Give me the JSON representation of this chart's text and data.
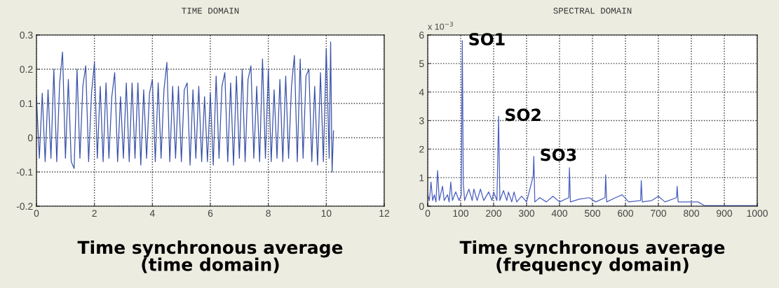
{
  "chart_data": [
    {
      "type": "line",
      "title": "TIME DOMAIN",
      "annotations": [
        "Time synchronous average\n(time domain)"
      ],
      "series": [
        {
          "color": "#3a53a8",
          "x": [
            0.0,
            0.1,
            0.2,
            0.3,
            0.4,
            0.5,
            0.6,
            0.7,
            0.8,
            0.9,
            1.0,
            1.1,
            1.2,
            1.3,
            1.4,
            1.5,
            1.6,
            1.7,
            1.8,
            1.9,
            2.0,
            2.1,
            2.2,
            2.3,
            2.4,
            2.5,
            2.6,
            2.7,
            2.8,
            2.9,
            3.0,
            3.1,
            3.2,
            3.3,
            3.4,
            3.5,
            3.6,
            3.7,
            3.8,
            3.9,
            4.0,
            4.1,
            4.2,
            4.3,
            4.4,
            4.5,
            4.6,
            4.7,
            4.8,
            4.9,
            5.0,
            5.1,
            5.2,
            5.3,
            5.4,
            5.5,
            5.6,
            5.7,
            5.8,
            5.9,
            6.0,
            6.1,
            6.2,
            6.3,
            6.4,
            6.5,
            6.6,
            6.7,
            6.8,
            6.9,
            7.0,
            7.1,
            7.2,
            7.3,
            7.4,
            7.5,
            7.6,
            7.7,
            7.8,
            7.9,
            8.0,
            8.1,
            8.2,
            8.3,
            8.4,
            8.5,
            8.6,
            8.7,
            8.8,
            8.9,
            9.0,
            9.1,
            9.2,
            9.3,
            9.4,
            9.5,
            9.6,
            9.7,
            9.8,
            9.9,
            10.0,
            10.1,
            10.15,
            10.2,
            10.25
          ],
          "values": [
            0.12,
            -0.06,
            0.13,
            -0.07,
            0.14,
            -0.06,
            0.2,
            -0.07,
            0.16,
            0.25,
            -0.06,
            0.17,
            -0.07,
            -0.09,
            0.2,
            -0.06,
            0.15,
            0.21,
            -0.07,
            0.13,
            0.22,
            -0.06,
            0.15,
            -0.07,
            0.16,
            -0.06,
            0.12,
            0.19,
            -0.07,
            0.12,
            -0.06,
            0.16,
            -0.07,
            0.16,
            -0.06,
            0.16,
            -0.08,
            0.14,
            -0.06,
            0.13,
            0.17,
            -0.07,
            0.16,
            -0.06,
            0.14,
            0.22,
            -0.07,
            0.15,
            -0.06,
            0.15,
            -0.07,
            0.14,
            0.16,
            -0.08,
            0.14,
            -0.06,
            0.15,
            -0.07,
            0.12,
            -0.07,
            0.13,
            -0.08,
            0.18,
            -0.06,
            0.15,
            0.19,
            -0.07,
            0.16,
            -0.08,
            0.18,
            -0.06,
            0.2,
            -0.07,
            0.17,
            0.21,
            -0.06,
            0.15,
            -0.07,
            0.23,
            -0.06,
            0.2,
            -0.07,
            0.14,
            -0.06,
            0.17,
            -0.07,
            0.18,
            -0.06,
            0.15,
            0.24,
            -0.07,
            0.23,
            -0.06,
            0.18,
            0.2,
            -0.07,
            0.15,
            -0.08,
            0.19,
            -0.07,
            0.26,
            -0.06,
            0.28,
            -0.1,
            0.02
          ]
        }
      ],
      "xlim": [
        0,
        12
      ],
      "xticks": [
        0,
        2,
        4,
        6,
        8,
        10,
        12
      ],
      "ylim": [
        -0.2,
        0.3
      ],
      "yticks": [
        -0.2,
        -0.1,
        0,
        0.1,
        0.2,
        0.3
      ],
      "grid": true,
      "line_style": "solid"
    },
    {
      "type": "line",
      "title": "SPECTRAL DOMAIN",
      "ylabel": "x 10$^{−3}$",
      "annotations": [
        {
          "text": "SO1",
          "x": 105,
          "y": 5.8
        },
        {
          "text": "SO2",
          "x": 215,
          "y": 3.15
        },
        {
          "text": "SO3",
          "x": 322,
          "y": 1.75
        },
        "Time synchronous average\n(frequency domain)"
      ],
      "series": [
        {
          "color": "#4a5fc0",
          "x": [
            0,
            5,
            10,
            15,
            20,
            25,
            30,
            35,
            45,
            50,
            60,
            65,
            70,
            75,
            85,
            95,
            102,
            105,
            108,
            112,
            125,
            135,
            140,
            150,
            160,
            170,
            185,
            195,
            200,
            210,
            215,
            219,
            230,
            240,
            245,
            255,
            262,
            270,
            285,
            300,
            320,
            322,
            325,
            340,
            360,
            380,
            400,
            428,
            430,
            433,
            460,
            490,
            510,
            538,
            540,
            543,
            570,
            590,
            610,
            646,
            648,
            651,
            680,
            700,
            720,
            755,
            757,
            760,
            790,
            820,
            840,
            880,
            1000
          ],
          "values": [
            0.4,
            0.2,
            0.85,
            0.2,
            0.4,
            0.15,
            1.25,
            0.2,
            0.7,
            0.2,
            0.4,
            0.15,
            0.85,
            0.2,
            0.5,
            0.2,
            0.4,
            5.8,
            0.8,
            0.2,
            0.6,
            0.2,
            0.6,
            0.2,
            0.6,
            0.2,
            0.5,
            0.2,
            0.5,
            0.2,
            3.15,
            0.2,
            0.55,
            0.2,
            0.5,
            0.15,
            0.5,
            0.15,
            0.35,
            0.15,
            1.05,
            1.75,
            0.15,
            0.3,
            0.15,
            0.35,
            0.15,
            0.3,
            1.35,
            0.15,
            0.25,
            0.3,
            0.15,
            0.3,
            1.1,
            0.15,
            0.3,
            0.4,
            0.15,
            0.2,
            0.9,
            0.15,
            0.2,
            0.35,
            0.15,
            0.3,
            0.7,
            0.15,
            0.15,
            0.15,
            0.02,
            0.02,
            0.02
          ]
        }
      ],
      "xlim": [
        0,
        1000
      ],
      "xticks": [
        0,
        100,
        200,
        300,
        400,
        500,
        600,
        700,
        800,
        900,
        1000
      ],
      "ylim": [
        0,
        6
      ],
      "yticks": [
        0,
        1,
        2,
        3,
        4,
        5,
        6
      ],
      "grid": true,
      "line_style": "solid"
    }
  ]
}
